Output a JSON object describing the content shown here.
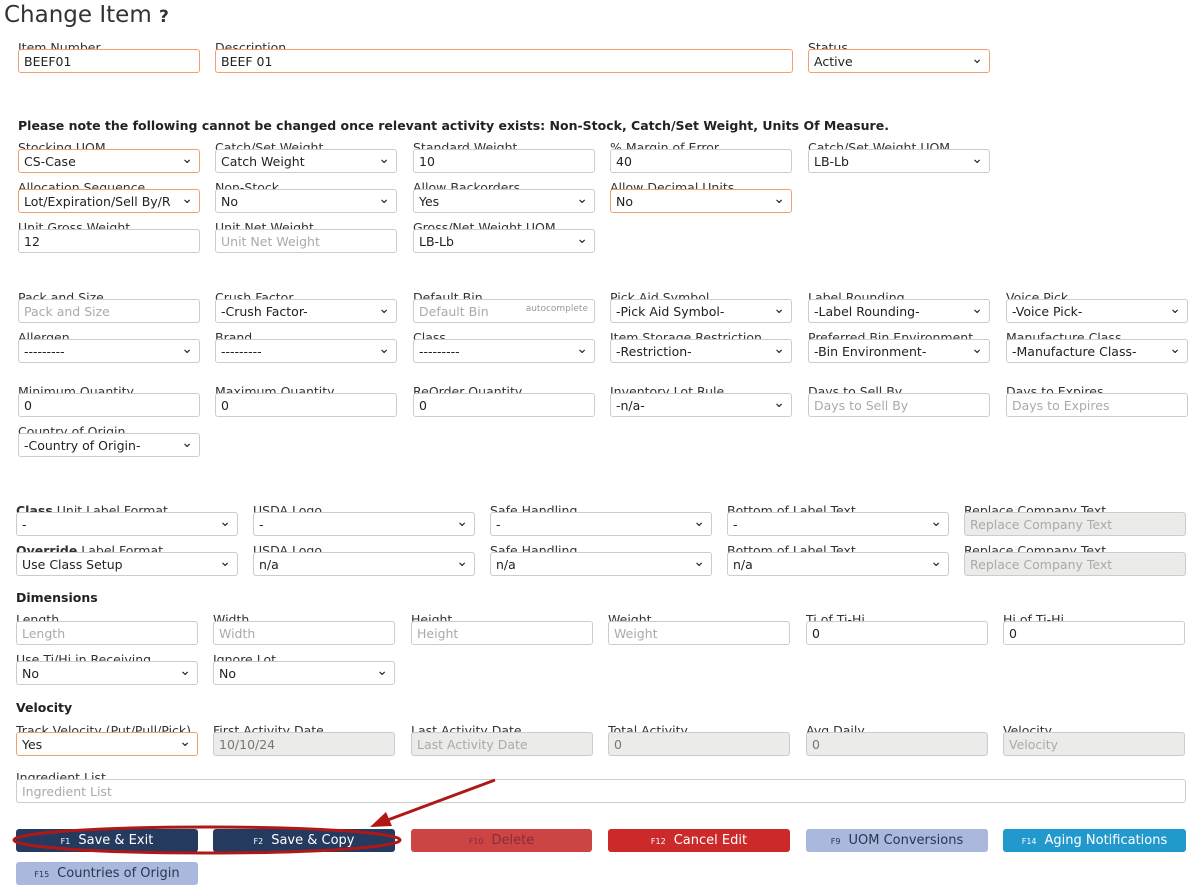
{
  "title": "Change Item",
  "help_icon": "?",
  "note": "Please note the following cannot be changed once relevant activity exists: Non-Stock, Catch/Set Weight, Units Of Measure.",
  "sections": {
    "dimensions": "Dimensions",
    "velocity": "Velocity"
  },
  "rows": [
    [
      {
        "label": "Item Number",
        "value": "BEEF01",
        "type": "input",
        "hl": true
      },
      {
        "label": "Description",
        "value": "BEEF 01",
        "type": "input",
        "hl": true
      },
      {
        "label": "Status",
        "value": "Active",
        "type": "select",
        "hl": true
      }
    ],
    [
      {
        "label": "Stocking UOM",
        "value": "CS-Case",
        "type": "select",
        "hl": true
      },
      {
        "label": "Catch/Set Weight",
        "value": "Catch Weight",
        "type": "select"
      },
      {
        "label": "Standard Weight",
        "value": "10",
        "type": "input"
      },
      {
        "label": "% Margin of Error",
        "value": "40",
        "type": "input"
      },
      {
        "label": "Catch/Set Weight UOM",
        "value": "LB-Lb",
        "type": "select"
      }
    ],
    [
      {
        "label": "Allocation Sequence",
        "value": "Lot/Expiration/Sell By/R",
        "type": "select",
        "hl": true
      },
      {
        "label": "Non-Stock",
        "value": "No",
        "type": "select"
      },
      {
        "label": "Allow Backorders",
        "value": "Yes",
        "type": "select"
      },
      {
        "label": "Allow Decimal Units",
        "value": "No",
        "type": "select",
        "hl": true
      }
    ],
    [
      {
        "label": "Unit Gross Weight",
        "value": "12",
        "type": "input"
      },
      {
        "label": "Unit Net Weight",
        "placeholder": "Unit Net Weight",
        "type": "input"
      },
      {
        "label": "Gross/Net Weight UOM",
        "value": "LB-Lb",
        "type": "select"
      }
    ],
    [
      {
        "label": "Pack and Size",
        "placeholder": "Pack and Size",
        "type": "input"
      },
      {
        "label": "Crush Factor",
        "value": "-Crush Factor-",
        "type": "select"
      },
      {
        "label": "Default Bin",
        "placeholder": "Default Bin",
        "type": "input",
        "hint": "autocomplete"
      },
      {
        "label": "Pick Aid Symbol",
        "value": "-Pick Aid Symbol-",
        "type": "select"
      },
      {
        "label": "Label Rounding",
        "value": "-Label Rounding-",
        "type": "select"
      },
      {
        "label": "Voice Pick",
        "value": "-Voice Pick-",
        "type": "select"
      }
    ],
    [
      {
        "label": "Allergen",
        "value": "---------",
        "type": "select"
      },
      {
        "label": "Brand",
        "value": "---------",
        "type": "select"
      },
      {
        "label": "Class",
        "value": "---------",
        "type": "select"
      },
      {
        "label": "Item Storage Restriction",
        "value": "-Restriction-",
        "type": "select"
      },
      {
        "label": "Preferred Bin Environment",
        "value": "-Bin Environment-",
        "type": "select"
      },
      {
        "label": "Manufacture Class",
        "value": "-Manufacture Class-",
        "type": "select"
      }
    ],
    [
      {
        "label": "Minimum Quantity",
        "value": "0",
        "type": "input"
      },
      {
        "label": "Maximum Quantity",
        "value": "0",
        "type": "input"
      },
      {
        "label": "ReOrder Quantity",
        "value": "0",
        "type": "input"
      },
      {
        "label": "Inventory Lot Rule",
        "value": "-n/a-",
        "type": "select"
      },
      {
        "label": "Days to Sell By",
        "placeholder": "Days to Sell By",
        "type": "input"
      },
      {
        "label": "Days to Expires",
        "placeholder": "Days to Expires",
        "type": "input"
      }
    ],
    [
      {
        "label": "Country of Origin",
        "value": "-Country of Origin-",
        "type": "select"
      }
    ],
    [
      {
        "label_bold": "Class",
        "label": " Unit Label Format",
        "value": "-",
        "type": "select"
      },
      {
        "label": "USDA Logo",
        "value": "-",
        "type": "select"
      },
      {
        "label": "Safe Handling",
        "value": "-",
        "type": "select"
      },
      {
        "label": "Bottom of Label Text",
        "value": "-",
        "type": "select"
      },
      {
        "label": "Replace Company Text",
        "placeholder": "Replace Company Text",
        "type": "disabled"
      }
    ],
    [
      {
        "label_bold": "Override",
        "label": " Label Format",
        "value": "Use Class Setup",
        "type": "select"
      },
      {
        "label": "USDA Logo",
        "value": "n/a",
        "type": "select"
      },
      {
        "label": "Safe Handling",
        "value": "n/a",
        "type": "select"
      },
      {
        "label": "Bottom of Label Text",
        "value": "n/a",
        "type": "select"
      },
      {
        "label": "Replace Company Text",
        "placeholder": "Replace Company Text",
        "type": "disabled"
      }
    ],
    [
      {
        "label": "Length",
        "placeholder": "Length",
        "type": "input"
      },
      {
        "label": "Width",
        "placeholder": "Width",
        "type": "input"
      },
      {
        "label": "Height",
        "placeholder": "Height",
        "type": "input"
      },
      {
        "label": "Weight",
        "placeholder": "Weight",
        "type": "input"
      },
      {
        "label": "Ti of Ti-Hi",
        "value": "0",
        "type": "input"
      },
      {
        "label": "Hi of Ti-Hi",
        "value": "0",
        "type": "input"
      }
    ],
    [
      {
        "label": "Use Ti/Hi in Receiving",
        "value": "No",
        "type": "select"
      },
      {
        "label": "Ignore Lot",
        "value": "No",
        "type": "select"
      }
    ],
    [
      {
        "label": "Track Velocity (Put/Pull/Pick)",
        "value": "Yes",
        "type": "select",
        "hl": true
      },
      {
        "label": "First Activity Date",
        "value": "10/10/24",
        "type": "disabled"
      },
      {
        "label": "Last Activity Date",
        "placeholder": "Last Activity Date",
        "type": "disabled"
      },
      {
        "label": "Total Activity",
        "value": "0",
        "type": "disabled"
      },
      {
        "label": "Avg Daily",
        "value": "0",
        "type": "disabled"
      },
      {
        "label": "Velocity",
        "placeholder": "Velocity",
        "type": "disabled"
      }
    ],
    [
      {
        "label": "Ingredient List",
        "placeholder": "Ingredient List",
        "type": "input"
      }
    ]
  ],
  "buttons": [
    {
      "key": "F1",
      "label": "Save & Exit",
      "bg": "#243a5e",
      "fg": "#ffffff"
    },
    {
      "key": "F2",
      "label": "Save & Copy",
      "bg": "#243a5e",
      "fg": "#ffffff"
    },
    {
      "key": "F10",
      "label": "Delete",
      "bg": "#cc4444",
      "fg": "#8a2b3a"
    },
    {
      "key": "F12",
      "label": "Cancel Edit",
      "bg": "#cc2a2a",
      "fg": "#ffffff"
    },
    {
      "key": "F9",
      "label": "UOM Conversions",
      "bg": "#aab8dd",
      "fg": "#2a3550"
    },
    {
      "key": "F14",
      "label": "Aging Notifications",
      "bg": "#2299cc",
      "fg": "#ffffff"
    },
    {
      "key": "F15",
      "label": "Countries of Origin",
      "bg": "#aab8dd",
      "fg": "#2a3550"
    }
  ],
  "annotation_color": "#b01818"
}
